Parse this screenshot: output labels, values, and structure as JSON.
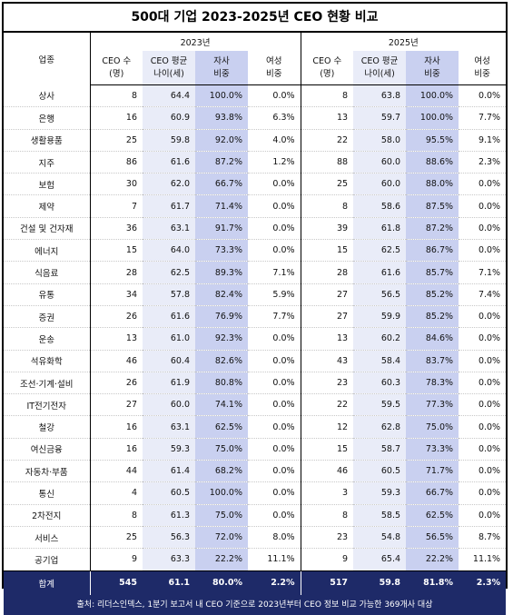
{
  "title": "500대 기업 2023-2025년 CEO 현황 비교",
  "header": {
    "industry": "업종",
    "year_a": "2023년",
    "year_b": "2025년",
    "ceo_count": [
      "CEO 수",
      "(명)"
    ],
    "ceo_age": [
      "CEO 평균",
      "나이(세)"
    ],
    "internal": [
      "자사",
      "비중"
    ],
    "female": [
      "여성",
      "비중"
    ]
  },
  "rows": [
    {
      "industry": "상사",
      "a": [
        "8",
        "64.4",
        "100.0%",
        "0.0%"
      ],
      "b": [
        "8",
        "63.8",
        "100.0%",
        "0.0%"
      ]
    },
    {
      "industry": "은행",
      "a": [
        "16",
        "60.9",
        "93.8%",
        "6.3%"
      ],
      "b": [
        "13",
        "59.7",
        "100.0%",
        "7.7%"
      ]
    },
    {
      "industry": "생활용품",
      "a": [
        "25",
        "59.8",
        "92.0%",
        "4.0%"
      ],
      "b": [
        "22",
        "58.0",
        "95.5%",
        "9.1%"
      ]
    },
    {
      "industry": "지주",
      "a": [
        "86",
        "61.6",
        "87.2%",
        "1.2%"
      ],
      "b": [
        "88",
        "60.0",
        "88.6%",
        "2.3%"
      ]
    },
    {
      "industry": "보험",
      "a": [
        "30",
        "62.0",
        "66.7%",
        "0.0%"
      ],
      "b": [
        "25",
        "60.0",
        "88.0%",
        "0.0%"
      ]
    },
    {
      "industry": "제약",
      "a": [
        "7",
        "61.7",
        "71.4%",
        "0.0%"
      ],
      "b": [
        "8",
        "58.6",
        "87.5%",
        "0.0%"
      ]
    },
    {
      "industry": "건설 및 건자재",
      "a": [
        "36",
        "63.1",
        "91.7%",
        "0.0%"
      ],
      "b": [
        "39",
        "61.8",
        "87.2%",
        "0.0%"
      ]
    },
    {
      "industry": "에너지",
      "a": [
        "15",
        "64.0",
        "73.3%",
        "0.0%"
      ],
      "b": [
        "15",
        "62.5",
        "86.7%",
        "0.0%"
      ]
    },
    {
      "industry": "식음료",
      "a": [
        "28",
        "62.5",
        "89.3%",
        "7.1%"
      ],
      "b": [
        "28",
        "61.6",
        "85.7%",
        "7.1%"
      ]
    },
    {
      "industry": "유통",
      "a": [
        "34",
        "57.8",
        "82.4%",
        "5.9%"
      ],
      "b": [
        "27",
        "56.5",
        "85.2%",
        "7.4%"
      ]
    },
    {
      "industry": "증권",
      "a": [
        "26",
        "61.6",
        "76.9%",
        "7.7%"
      ],
      "b": [
        "27",
        "59.9",
        "85.2%",
        "0.0%"
      ]
    },
    {
      "industry": "운송",
      "a": [
        "13",
        "61.0",
        "92.3%",
        "0.0%"
      ],
      "b": [
        "13",
        "60.2",
        "84.6%",
        "0.0%"
      ]
    },
    {
      "industry": "석유화학",
      "a": [
        "46",
        "60.4",
        "82.6%",
        "0.0%"
      ],
      "b": [
        "43",
        "58.4",
        "83.7%",
        "0.0%"
      ]
    },
    {
      "industry": "조선·기계·설비",
      "a": [
        "26",
        "61.9",
        "80.8%",
        "0.0%"
      ],
      "b": [
        "23",
        "60.3",
        "78.3%",
        "0.0%"
      ]
    },
    {
      "industry": "IT전기전자",
      "a": [
        "27",
        "60.0",
        "74.1%",
        "0.0%"
      ],
      "b": [
        "22",
        "59.5",
        "77.3%",
        "0.0%"
      ]
    },
    {
      "industry": "철강",
      "a": [
        "16",
        "63.1",
        "62.5%",
        "0.0%"
      ],
      "b": [
        "12",
        "62.8",
        "75.0%",
        "0.0%"
      ]
    },
    {
      "industry": "여신금융",
      "a": [
        "16",
        "59.3",
        "75.0%",
        "0.0%"
      ],
      "b": [
        "15",
        "58.7",
        "73.3%",
        "0.0%"
      ]
    },
    {
      "industry": "자동차·부품",
      "a": [
        "44",
        "61.4",
        "68.2%",
        "0.0%"
      ],
      "b": [
        "46",
        "60.5",
        "71.7%",
        "0.0%"
      ]
    },
    {
      "industry": "통신",
      "a": [
        "4",
        "60.5",
        "100.0%",
        "0.0%"
      ],
      "b": [
        "3",
        "59.3",
        "66.7%",
        "0.0%"
      ]
    },
    {
      "industry": "2차전지",
      "a": [
        "8",
        "61.3",
        "75.0%",
        "0.0%"
      ],
      "b": [
        "8",
        "58.5",
        "62.5%",
        "0.0%"
      ]
    },
    {
      "industry": "서비스",
      "a": [
        "25",
        "56.3",
        "72.0%",
        "8.0%"
      ],
      "b": [
        "23",
        "54.8",
        "56.5%",
        "8.7%"
      ]
    },
    {
      "industry": "공기업",
      "a": [
        "9",
        "63.3",
        "22.2%",
        "11.1%"
      ],
      "b": [
        "9",
        "65.4",
        "22.2%",
        "11.1%"
      ]
    }
  ],
  "total": {
    "industry": "합계",
    "a": [
      "545",
      "61.1",
      "80.0%",
      "2.2%"
    ],
    "b": [
      "517",
      "59.8",
      "81.8%",
      "2.3%"
    ]
  },
  "source": "출처: 리더스인덱스, 1분기 보고서 내 CEO 기준으로 2023년부터 CEO 정보 비교 가능한 369개사 대상",
  "colors": {
    "light_band": "#e9ecf8",
    "dark_band": "#c9d0f0",
    "footer": "#1e2a68"
  }
}
